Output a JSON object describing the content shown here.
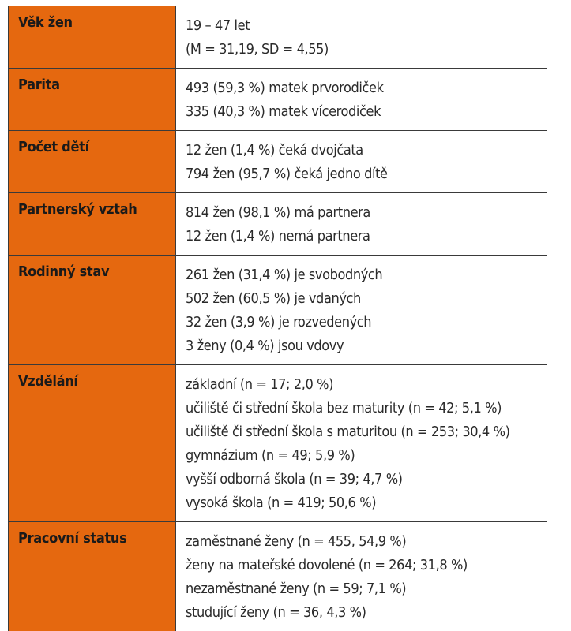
{
  "rows": [
    {
      "label": "Věk žen",
      "lines": [
        "19 – 47 let",
        "(M = 31,19, SD = 4,55)"
      ]
    },
    {
      "label": "Parita",
      "lines": [
        "493 (59,3 %) matek prvorodiček",
        "335 (40,3 %) matek vícerodiček"
      ]
    },
    {
      "label": "Počet dětí",
      "lines": [
        "12 žen (1,4 %) čeká dvojčata",
        "794 žen (95,7 %) čeká jedno dítě"
      ]
    },
    {
      "label": "Partnerský vztah",
      "lines": [
        "814 žen (98,1 %) má partnera",
        "12 žen (1,4 %) nemá partnera"
      ]
    },
    {
      "label": "Rodinný stav",
      "lines": [
        "261 žen (31,4 %) je svobodných",
        "502 žen (60,5 %) je vdaných",
        "32 žen (3,9 %) je rozvedených",
        "3 ženy (0,4 %) jsou vdovy"
      ]
    },
    {
      "label": "Vzdělání",
      "lines": [
        "základní (n = 17; 2,0 %)",
        "učiliště či střední škola bez maturity (n = 42; 5,1 %)",
        "učiliště či střední škola s maturitou (n = 253; 30,4 %)",
        "gymnázium (n = 49; 5,9 %)",
        "vyšší odborná škola (n = 39; 4,7 %)",
        "vysoká škola (n = 419; 50,6 %)"
      ]
    },
    {
      "label": "Pracovní status",
      "lines": [
        "zaměstnané ženy (n = 455, 54,9 %)",
        "ženy na mateřské dovolené (n = 264; 31,8 %)",
        "nezaměstnané ženy (n = 59; 7,1 %)",
        "studující ženy (n = 36, 4,3 %)"
      ]
    }
  ],
  "colors": {
    "label_background": "#e5680f",
    "border": "#3a3a3a",
    "text": "#2a2a2a"
  }
}
